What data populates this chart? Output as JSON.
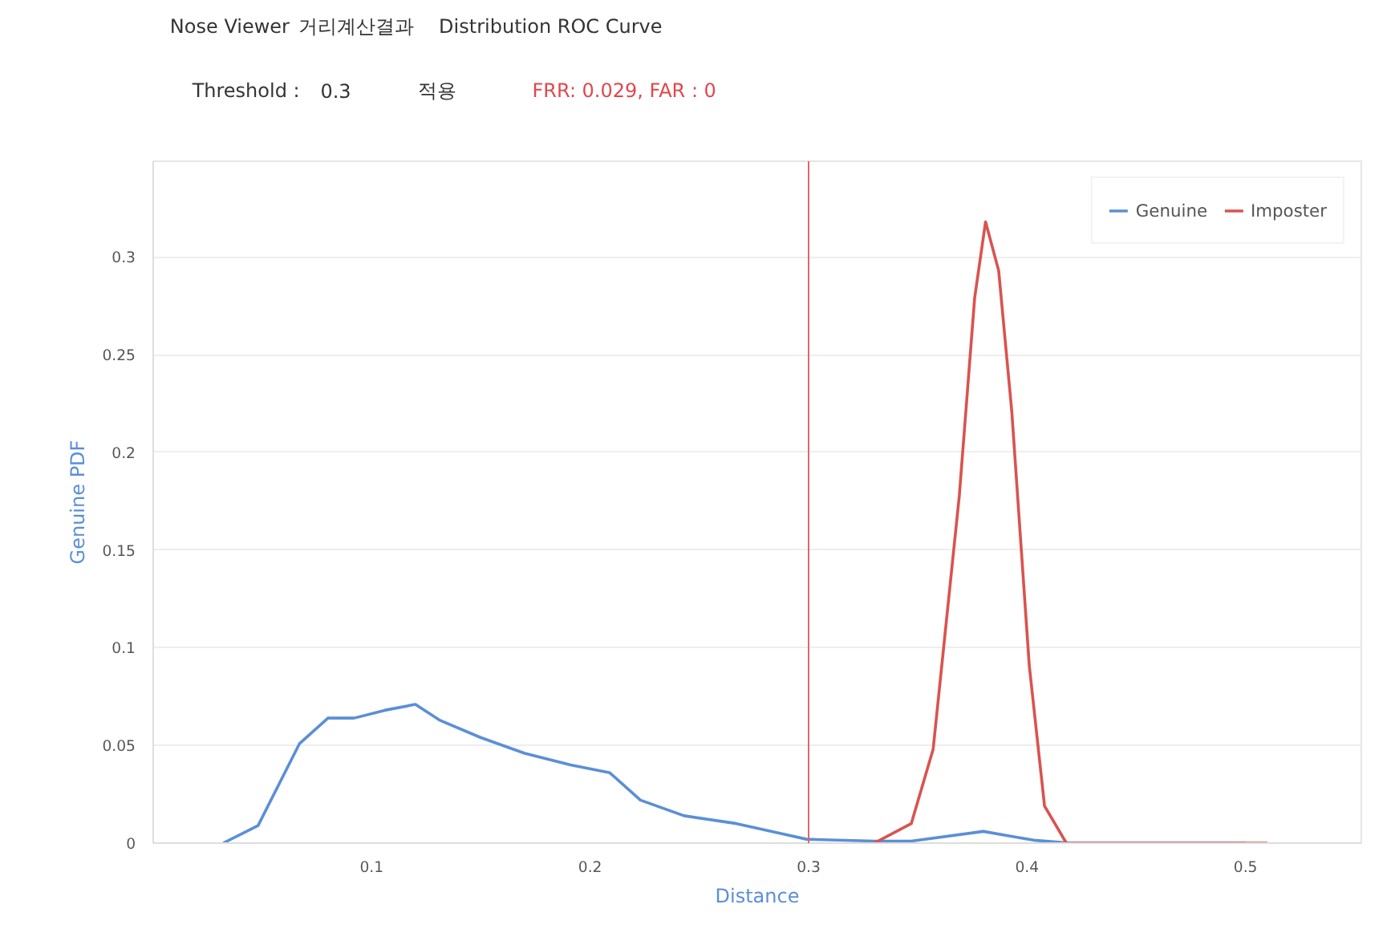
{
  "chart_data": {
    "type": "line",
    "xlabel": "Distance",
    "ylabel": "Genuine PDF",
    "annotations": [
      "Nose Viewer",
      "거리계산결과",
      "Distribution",
      "ROC Curve",
      "Threshold :",
      "0.3",
      "적용",
      "FRR: 0.029, FAR : 0"
    ],
    "xlim": [
      0,
      0.553
    ],
    "ylim": [
      0,
      0.349
    ],
    "xticks": [
      0.1,
      0.2,
      0.3,
      0.4,
      0.5
    ],
    "yticks": [
      0,
      0.05,
      0.1,
      0.15,
      0.2,
      0.25,
      0.3
    ],
    "series": [
      {
        "name": "Genuine",
        "color": "#5b8fd6",
        "x": [
          0.032,
          0.048,
          0.067,
          0.08,
          0.092,
          0.106,
          0.12,
          0.131,
          0.15,
          0.17,
          0.191,
          0.209,
          0.223,
          0.243,
          0.267,
          0.291,
          0.299,
          0.33,
          0.347,
          0.38,
          0.403,
          0.42,
          0.5
        ],
        "values": [
          0,
          0.009,
          0.051,
          0.064,
          0.064,
          0.068,
          0.071,
          0.063,
          0.054,
          0.046,
          0.04,
          0.036,
          0.022,
          0.014,
          0.01,
          0.004,
          0.002,
          0.001,
          0.001,
          0.006,
          0.0015,
          0,
          0
        ]
      },
      {
        "name": "Imposter",
        "color": "#d9534f",
        "x": [
          0.33,
          0.347,
          0.357,
          0.369,
          0.376,
          0.381,
          0.387,
          0.393,
          0.401,
          0.408,
          0.418,
          0.51
        ],
        "values": [
          0,
          0.01,
          0.048,
          0.178,
          0.279,
          0.318,
          0.293,
          0.221,
          0.091,
          0.019,
          0,
          0
        ]
      }
    ],
    "ref_lines": [
      {
        "axis": "x",
        "value": 0.3,
        "color": "#e06666"
      }
    ],
    "grid": "y",
    "legend": "top right",
    "marker": "none",
    "line_style": "solid"
  }
}
